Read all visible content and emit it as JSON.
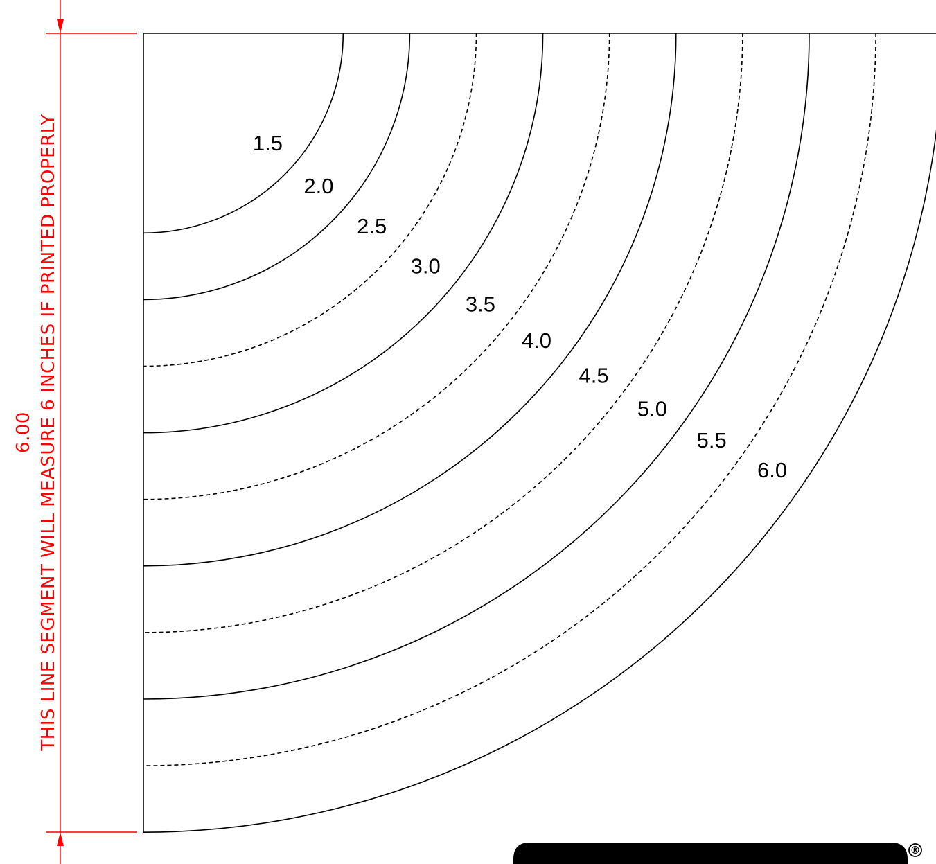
{
  "template": {
    "units": "in",
    "radii": [
      1.5,
      2.0,
      2.5,
      3.0,
      3.5,
      4.0,
      4.5,
      5.0,
      5.5,
      6.0
    ],
    "dashed": [
      false,
      false,
      true,
      false,
      true,
      false,
      true,
      false,
      true,
      false
    ],
    "labels": [
      "1.5",
      "2.0",
      "2.5",
      "3.0",
      "3.5",
      "4.0",
      "4.5",
      "5.0",
      "5.5",
      "6.0"
    ]
  },
  "dimension": {
    "value": "6.00",
    "caption": "THIS LINE SEGMENT WILL MEASURE 6 INCHES IF PRINTED PROPERLY",
    "color": "#ff0000"
  },
  "logo": {
    "registered_mark": "®",
    "color": "#000000"
  }
}
